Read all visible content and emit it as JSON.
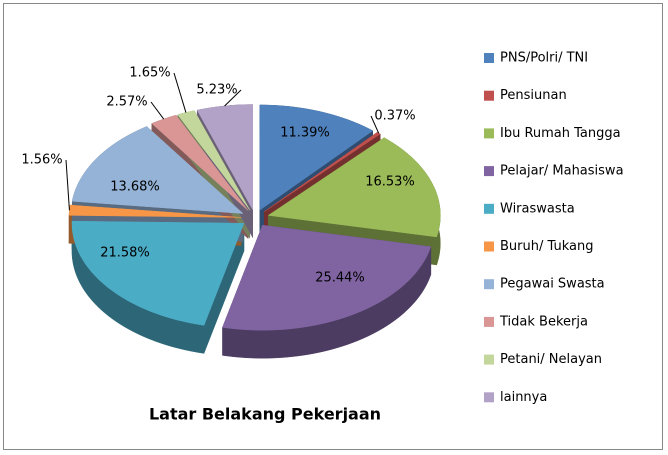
{
  "chart_data": {
    "type": "pie",
    "title": "Latar Belakang Pekerjaan",
    "categories": [
      "PNS/Polri/ TNI",
      "Pensiunan",
      "Ibu Rumah Tangga",
      "Pelajar/ Mahasiswa",
      "Wiraswasta",
      "Buruh/ Tukang",
      "Pegawai Swasta",
      "Tidak Bekerja",
      "Petani/ Nelayan",
      "lainnya"
    ],
    "values": [
      11.39,
      0.37,
      16.53,
      25.44,
      21.58,
      1.56,
      13.68,
      2.57,
      1.65,
      5.23
    ],
    "value_labels": [
      "11.39%",
      "0.37%",
      "16.53%",
      "25.44%",
      "21.58%",
      "1.56%",
      "13.68%",
      "2.57%",
      "1.65%",
      "5.23%"
    ],
    "colors": [
      "#4f81bd",
      "#c0504d",
      "#9bbb59",
      "#8064a2",
      "#4bacc6",
      "#f79646",
      "#95b3d7",
      "#d99694",
      "#c3d69b",
      "#b3a2c7"
    ],
    "legend": "right"
  }
}
